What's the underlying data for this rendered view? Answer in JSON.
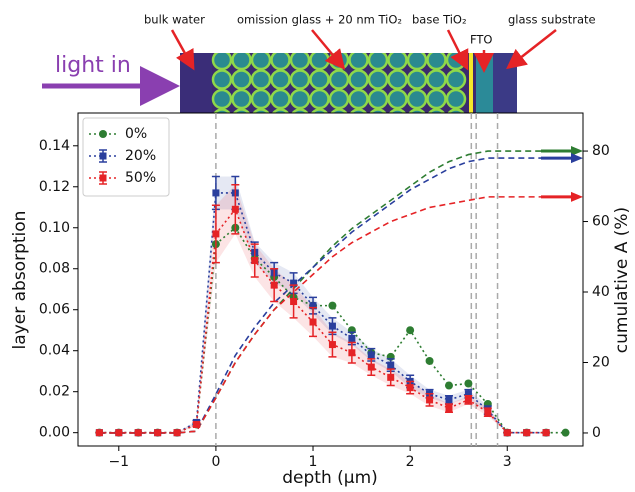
{
  "diagram": {
    "light_in": "light in",
    "bulk_water": "bulk water",
    "omission": "omission glass + 20 nm TiO₂",
    "base": "base TiO₂",
    "fto": "FTO",
    "substrate": "glass substrate"
  },
  "chart_data": {
    "type": "line",
    "x_label": "depth (μm)",
    "y_label": "layer absorption",
    "y2_label": "cumulative A (%)",
    "x": [
      -1.2,
      -1.0,
      -0.8,
      -0.6,
      -0.4,
      -0.2,
      0,
      0.2,
      0.4,
      0.6,
      0.8,
      1.0,
      1.2,
      1.4,
      1.6,
      1.8,
      2.0,
      2.2,
      2.4,
      2.6,
      2.8,
      3.0,
      3.2,
      3.4,
      3.6
    ],
    "xlim": [
      -1.42,
      3.78
    ],
    "ylim": [
      -0.0065,
      0.156
    ],
    "y2lim": [
      -3.7,
      90.8
    ],
    "xticks": [
      {
        "value": -1,
        "label": "−1"
      },
      0,
      1,
      2,
      3
    ],
    "yticks": [
      {
        "value": 0,
        "label": "0.00"
      },
      {
        "value": 0.02,
        "label": "0.02"
      },
      {
        "value": 0.04,
        "label": "0.04"
      },
      {
        "value": 0.06,
        "label": "0.06"
      },
      {
        "value": 0.08,
        "label": "0.08"
      },
      {
        "value": 0.1,
        "label": "0.10"
      },
      {
        "value": 0.12,
        "label": "0.12"
      },
      {
        "value": 0.14,
        "label": "0.14"
      }
    ],
    "y2ticks": [
      0,
      20,
      40,
      60,
      80
    ],
    "vlines": [
      0,
      2.63,
      2.68,
      2.9
    ],
    "legend": "upper left",
    "series": [
      {
        "name": "0%",
        "color": "#2e7d32",
        "marker": "circle",
        "linestyle": "dotted",
        "values": [
          0,
          0,
          0,
          0,
          0,
          0.004,
          0.092,
          0.1,
          0.085,
          0.076,
          0.066,
          0.062,
          0.062,
          0.05,
          0.039,
          0.037,
          0.05,
          0.035,
          0.023,
          0.024,
          0.014,
          0,
          0,
          0,
          0
        ]
      },
      {
        "name": "20%",
        "color": "#2a3f9d",
        "marker": "square",
        "linestyle": "dotted",
        "values": [
          0,
          0,
          0,
          0,
          0,
          0.005,
          0.117,
          0.117,
          0.088,
          0.078,
          0.073,
          0.062,
          0.052,
          0.046,
          0.038,
          0.033,
          0.025,
          0.019,
          0.016,
          0.019,
          0.011,
          0,
          0,
          0,
          null
        ],
        "errors": [
          0,
          0,
          0,
          0,
          0,
          0.001,
          0.008,
          0.008,
          0.005,
          0.005,
          0.005,
          0.004,
          0.004,
          0.003,
          0.003,
          0.003,
          0.003,
          0.002,
          0.002,
          0.002,
          0.002,
          0,
          0,
          0,
          null
        ]
      },
      {
        "name": "50%",
        "color": "#e52326",
        "marker": "square",
        "linestyle": "dotted",
        "values": [
          0,
          0,
          0,
          0,
          0,
          0.004,
          0.097,
          0.109,
          0.084,
          0.072,
          0.064,
          0.054,
          0.043,
          0.039,
          0.032,
          0.027,
          0.022,
          0.016,
          0.012,
          0.016,
          0.01,
          0,
          0,
          0,
          null
        ],
        "errors": [
          0,
          0,
          0,
          0,
          0,
          0.001,
          0.014,
          0.012,
          0.008,
          0.008,
          0.008,
          0.007,
          0.006,
          0.005,
          0.004,
          0.004,
          0.003,
          0.003,
          0.002,
          0.002,
          0.002,
          0,
          0,
          0,
          null
        ]
      },
      {
        "axis": "y2",
        "color": "#2e7d32",
        "linestyle": "dashed",
        "values": [
          0,
          0,
          0,
          0,
          0,
          0.5,
          10,
          20,
          28,
          35,
          41,
          47,
          53,
          58,
          62,
          66,
          70,
          74,
          77,
          79,
          80,
          80,
          80,
          80,
          80
        ]
      },
      {
        "axis": "y2",
        "color": "#2a3f9d",
        "linestyle": "dashed",
        "values": [
          0,
          0,
          0,
          0,
          0,
          0.5,
          11,
          22,
          30,
          37,
          42,
          47,
          52,
          57,
          61,
          65,
          69,
          72,
          75,
          77,
          78,
          78,
          78,
          78,
          78
        ]
      },
      {
        "axis": "y2",
        "color": "#e52326",
        "linestyle": "dashed",
        "values": [
          0,
          0,
          0,
          0,
          0,
          0.5,
          10,
          20,
          28,
          35,
          40,
          45,
          50,
          54,
          57,
          60,
          62,
          64,
          65,
          66,
          67,
          67,
          67,
          67,
          67
        ]
      }
    ]
  }
}
